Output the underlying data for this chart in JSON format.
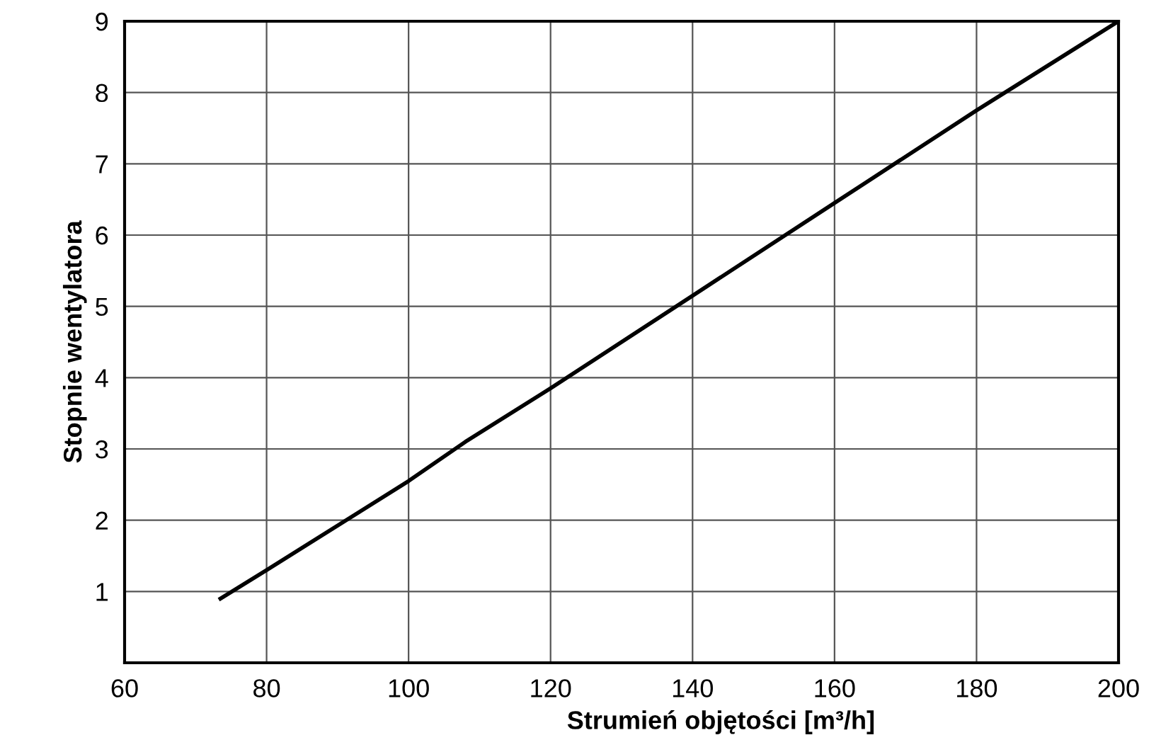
{
  "chart_data": {
    "type": "line",
    "xlabel": "Strumień objętości [m³/h]",
    "ylabel": "Stopnie wentylatora",
    "x": [
      73.5,
      80,
      100,
      108,
      120,
      140,
      160,
      180,
      200
    ],
    "series": [
      {
        "color": "#000000",
        "values": [
          0.9,
          1.3,
          2.55,
          3.1,
          3.85,
          5.15,
          6.45,
          7.75,
          9.0
        ]
      }
    ],
    "xlim": [
      60,
      200
    ],
    "xticks": [
      60,
      80,
      100,
      120,
      140,
      160,
      180,
      200
    ],
    "ylim": [
      0,
      9
    ],
    "yticks": [
      {
        "value": 0,
        "label": null
      },
      1,
      2,
      3,
      4,
      5,
      6,
      7,
      8,
      9
    ],
    "grid": true,
    "marker": "none",
    "line_style": "solid"
  }
}
